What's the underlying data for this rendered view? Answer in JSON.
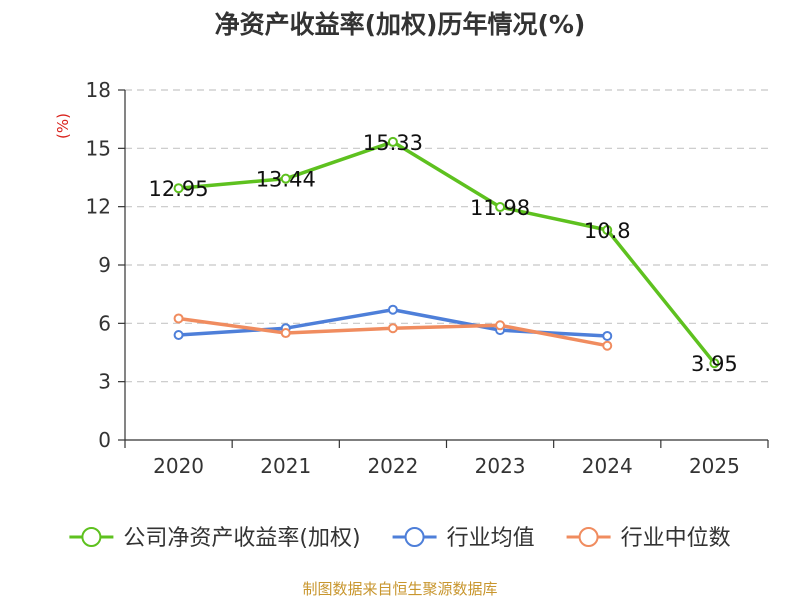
{
  "chart_data": {
    "type": "line",
    "title": "净资产收益率(加权)历年情况(%)",
    "ylabel": "(%)",
    "xlabel": "",
    "categories": [
      "2020",
      "2021",
      "2022",
      "2023",
      "2024",
      "2025"
    ],
    "ylim": [
      0,
      18
    ],
    "yticks": [
      0,
      3,
      6,
      9,
      12,
      15,
      18
    ],
    "grid": true,
    "legend_position": "bottom",
    "series": [
      {
        "name": "公司净资产收益率(加权)",
        "color": "#5ec11f",
        "values": [
          12.95,
          13.44,
          15.33,
          11.98,
          10.8,
          3.95
        ],
        "labels": [
          "12.95",
          "13.44",
          "15.33",
          "11.98",
          "10.8",
          "3.95"
        ]
      },
      {
        "name": "行业均值",
        "color": "#4e7fd9",
        "values": [
          5.4,
          5.75,
          6.7,
          5.65,
          5.35,
          null
        ]
      },
      {
        "name": "行业中位数",
        "color": "#f08c5f",
        "values": [
          6.25,
          5.5,
          5.75,
          5.9,
          4.85,
          null
        ]
      }
    ]
  },
  "source": "制图数据来自恒生聚源数据库"
}
